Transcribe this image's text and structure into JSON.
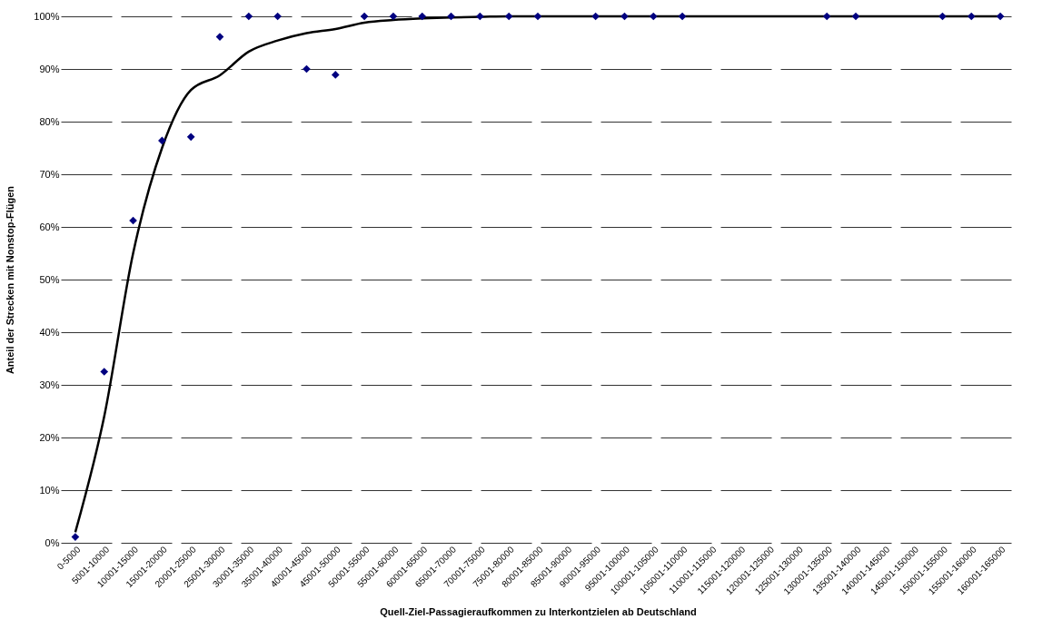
{
  "chart_data": {
    "type": "scatter",
    "xlabel": "Quell-Ziel-Passagieraufkommen zu Interkontzielen ab Deutschland",
    "ylabel": "Anteil der Strecken mit Nonstop-Flügen",
    "categories": [
      "0-5000",
      "5001-10000",
      "10001-15000",
      "15001-20000",
      "20001-25000",
      "25001-30000",
      "30001-35000",
      "35001-40000",
      "40001-45000",
      "45001-50000",
      "50001-55000",
      "55001-60000",
      "60001-65000",
      "65001-70000",
      "70001-75000",
      "75001-80000",
      "80001-85000",
      "85001-90000",
      "90001-95000",
      "95001-100000",
      "100001-105000",
      "105001-110000",
      "110001-115000",
      "115001-120000",
      "120001-125000",
      "125001-130000",
      "130001-135000",
      "135001-140000",
      "140001-145000",
      "145001-150000",
      "150001-155000",
      "155001-160000",
      "160001-165000"
    ],
    "series": [
      {
        "color": "#000080",
        "marker": "diamond",
        "values": [
          1.1,
          32.5,
          61.2,
          76.4,
          77.1,
          96.1,
          100,
          100,
          90,
          88.9,
          100,
          100,
          100,
          100,
          100,
          100,
          100,
          null,
          100,
          100,
          100,
          100,
          null,
          null,
          null,
          null,
          100,
          100,
          null,
          null,
          100,
          100,
          100
        ]
      },
      {
        "type": "line",
        "color": "#000000",
        "line_style": "solid",
        "values": [
          2,
          24,
          55,
          75,
          86,
          88.8,
          93.3,
          95.4,
          96.8,
          97.6,
          98.8,
          99.3,
          99.6,
          99.8,
          99.9,
          100,
          100,
          100,
          100,
          100,
          100,
          100,
          100,
          100,
          100,
          100,
          100,
          100,
          100,
          100,
          100,
          100,
          100
        ]
      }
    ],
    "ylim": [
      0,
      100
    ],
    "yticks": [
      {
        "value": 0,
        "label": "0%"
      },
      {
        "value": 10,
        "label": "10%"
      },
      {
        "value": 20,
        "label": "20%"
      },
      {
        "value": 30,
        "label": "30%"
      },
      {
        "value": 40,
        "label": "40%"
      },
      {
        "value": 50,
        "label": "50%"
      },
      {
        "value": 60,
        "label": "60%"
      },
      {
        "value": 70,
        "label": "70%"
      },
      {
        "value": 80,
        "label": "80%"
      },
      {
        "value": 90,
        "label": "90%"
      },
      {
        "value": 100,
        "label": "100%"
      }
    ],
    "grid": "y"
  }
}
